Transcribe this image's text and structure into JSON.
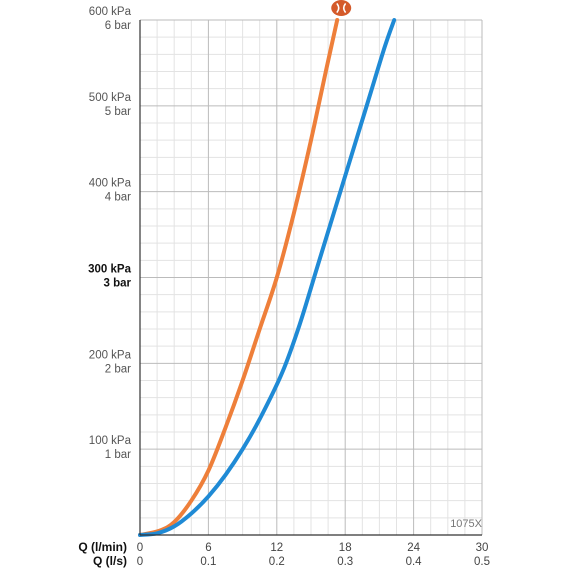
{
  "chart_data": {
    "type": "line",
    "model_label": "1075X",
    "x_axis_labels": {
      "primary": "Q (l/min)",
      "secondary": "Q (l/s)"
    },
    "x_ticks_lmin": [
      "0",
      "6",
      "12",
      "18",
      "24",
      "30"
    ],
    "x_ticks_ls": [
      "0",
      "0.1",
      "0.2",
      "0.3",
      "0.4",
      "0.5"
    ],
    "xlim": [
      0,
      30
    ],
    "ylim": [
      0,
      600
    ],
    "y_ticks": [
      {
        "value": 100,
        "kpa": "100 kPa",
        "bar": "1 bar",
        "bold": false
      },
      {
        "value": 200,
        "kpa": "200 kPa",
        "bar": "2 bar",
        "bold": false
      },
      {
        "value": 300,
        "kpa": "300 kPa",
        "bar": "3 bar",
        "bold": true
      },
      {
        "value": 400,
        "kpa": "400 kPa",
        "bar": "4 bar",
        "bold": false
      },
      {
        "value": 500,
        "kpa": "500 kPa",
        "bar": "5 bar",
        "bold": false
      },
      {
        "value": 600,
        "kpa": "600 kPa",
        "bar": "6 bar",
        "bold": false
      }
    ],
    "grid": true,
    "series": [
      {
        "color": "#ee7f3a",
        "x": [
          0,
          1.7,
          3.0,
          4.5,
          6.0,
          7.5,
          9.0,
          10.5,
          12.0,
          13.5,
          15.0,
          16.3,
          17.3
        ],
        "y": [
          0,
          5,
          15,
          40,
          75,
          125,
          180,
          240,
          300,
          375,
          460,
          540,
          600
        ]
      },
      {
        "color": "#1f8ad5",
        "x": [
          0,
          1.5,
          3.0,
          4.5,
          6.0,
          7.5,
          9.0,
          10.5,
          12.5,
          14.0,
          15.5,
          17.0,
          18.5,
          20.0,
          21.5,
          22.3
        ],
        "y": [
          0,
          2,
          10,
          25,
          45,
          70,
          100,
          135,
          190,
          245,
          310,
          375,
          440,
          505,
          570,
          600
        ]
      }
    ],
    "colors": {
      "axis": "#333333",
      "grid_major": "#bbbbbb",
      "grid_minor": "#e3e3e3",
      "marker": "#d45a2a"
    }
  }
}
